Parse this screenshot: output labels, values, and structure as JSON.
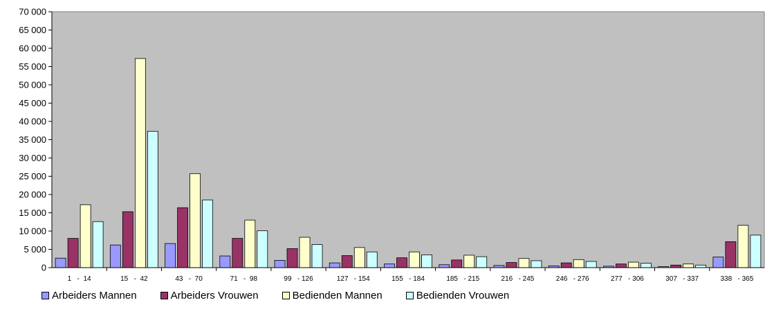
{
  "chart_data": {
    "type": "bar",
    "title": "",
    "xlabel": "",
    "ylabel": "",
    "ylim": [
      0,
      70000
    ],
    "yticks": [
      0,
      5000,
      10000,
      15000,
      20000,
      25000,
      30000,
      35000,
      40000,
      45000,
      50000,
      55000,
      60000,
      65000,
      70000
    ],
    "ytick_labels": [
      "0",
      "5 000",
      "10 000",
      "15 000",
      "20 000",
      "25 000",
      "30 000",
      "35 000",
      "40 000",
      "45 000",
      "50 000",
      "55 000",
      "60 000",
      "65 000",
      "70 000"
    ],
    "grid": false,
    "legend_position": "bottom",
    "plot_background": "#C0C0C0",
    "categories": [
      "1   -  14",
      "15   -  42",
      "43   -  70",
      "71   -  98",
      "99   - 126",
      "127   - 154",
      "155   - 184",
      "185   - 215",
      "216   - 245",
      "246   - 276",
      "277   - 306",
      "307   - 337",
      "338   - 365"
    ],
    "series": [
      {
        "name": "Arbeiders Mannen",
        "color": "#9999FF",
        "values": [
          2600,
          6200,
          6600,
          3200,
          2000,
          1300,
          1000,
          800,
          600,
          500,
          400,
          300,
          2900
        ]
      },
      {
        "name": "Arbeiders Vrouwen",
        "color": "#993366",
        "values": [
          8000,
          15300,
          16400,
          8000,
          5200,
          3300,
          2700,
          2100,
          1400,
          1300,
          1000,
          700,
          7100
        ]
      },
      {
        "name": "Bedienden Mannen",
        "color": "#FFFFCC",
        "values": [
          17200,
          57200,
          25700,
          13000,
          8300,
          5500,
          4300,
          3400,
          2500,
          2200,
          1500,
          1000,
          11600
        ]
      },
      {
        "name": "Bedienden Vrouwen",
        "color": "#CCFFFF",
        "values": [
          12600,
          37300,
          18500,
          10100,
          6300,
          4300,
          3500,
          3000,
          1900,
          1700,
          1200,
          700,
          8900
        ]
      }
    ]
  }
}
